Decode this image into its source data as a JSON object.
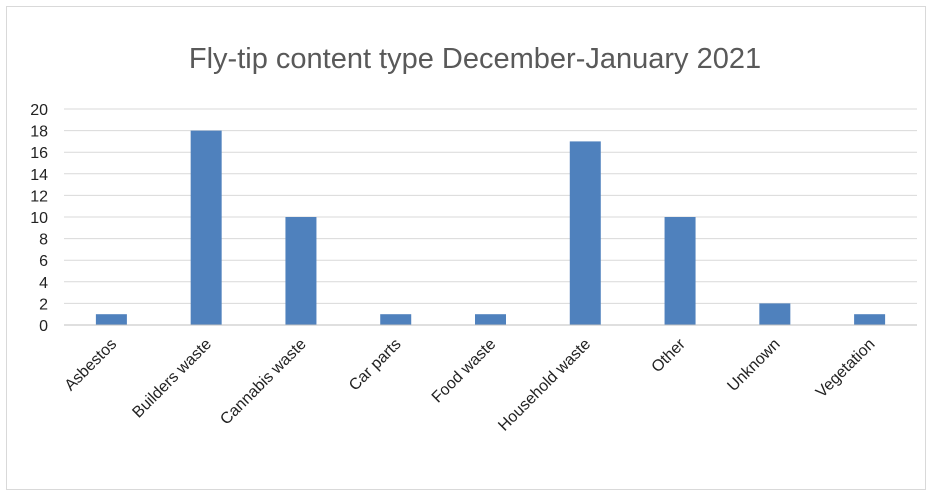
{
  "chart_data": {
    "type": "bar",
    "title": "Fly-tip content type December-January 2021",
    "xlabel": "",
    "ylabel": "",
    "categories": [
      "Asbestos",
      "Builders waste",
      "Cannabis waste",
      "Car parts",
      "Food waste",
      "Household waste",
      "Other",
      "Unknown",
      "Vegetation"
    ],
    "values": [
      1,
      18,
      10,
      1,
      1,
      17,
      10,
      2,
      1
    ],
    "ylim": [
      0,
      20
    ],
    "yticks": [
      0,
      2,
      4,
      6,
      8,
      10,
      12,
      14,
      16,
      18,
      20
    ],
    "grid": true,
    "legend": "none",
    "bar_color": "#4F81BD"
  }
}
